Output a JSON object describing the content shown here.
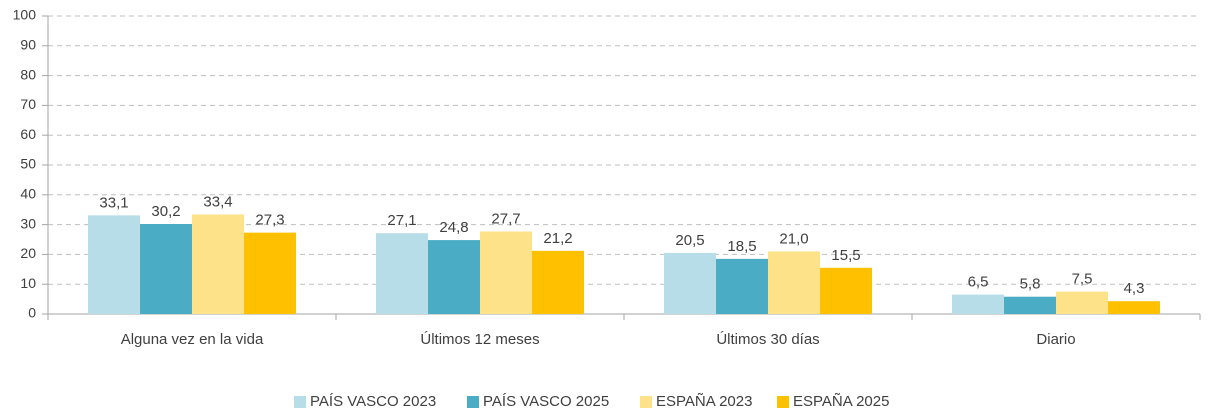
{
  "chart_data": {
    "type": "bar",
    "categories": [
      "Alguna vez en la vida",
      "Últimos 12 meses",
      "Últimos 30 días",
      "Diario"
    ],
    "series": [
      {
        "name": "PAÍS VASCO 2023",
        "color": "#b7dde8",
        "values": [
          33.1,
          27.1,
          20.5,
          6.5
        ],
        "value_labels": [
          "33,1",
          "27,1",
          "20,5",
          "6,5"
        ]
      },
      {
        "name": "PAÍS VASCO 2025",
        "color": "#4bacc6",
        "values": [
          30.2,
          24.8,
          18.5,
          5.8
        ],
        "value_labels": [
          "30,2",
          "24,8",
          "18,5",
          "5,8"
        ]
      },
      {
        "name": "ESPAÑA 2023",
        "color": "#fee28a",
        "values": [
          33.4,
          27.7,
          21.0,
          7.5
        ],
        "value_labels": [
          "33,4",
          "27,7",
          "21,0",
          "7,5"
        ]
      },
      {
        "name": "ESPAÑA 2025",
        "color": "#ffc000",
        "values": [
          27.3,
          21.2,
          15.5,
          4.3
        ],
        "value_labels": [
          "27,3",
          "21,2",
          "15,5",
          "4,3"
        ]
      }
    ],
    "ylim": [
      0,
      100
    ],
    "yticks": [
      0,
      10,
      20,
      30,
      40,
      50,
      60,
      70,
      80,
      90,
      100
    ],
    "grid": true,
    "legend": "bottom"
  }
}
